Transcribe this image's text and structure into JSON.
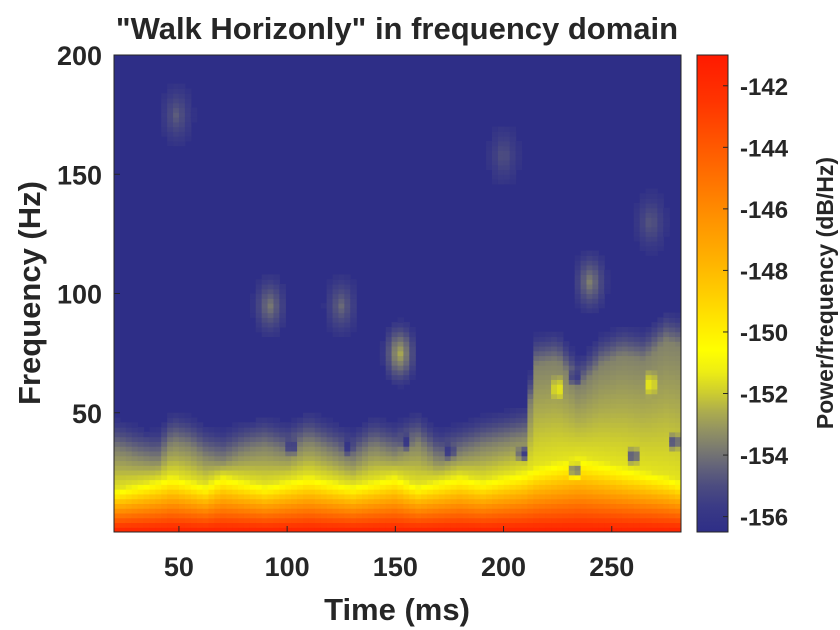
{
  "chart_data": {
    "type": "heatmap",
    "title": "\"Walk Horizonly\" in frequency domain",
    "xlabel": "Time (ms)",
    "ylabel": "Frequency (Hz)",
    "colorbar_label": "Power/frequency (dB/Hz)",
    "xlim": [
      20,
      282
    ],
    "ylim": [
      0,
      200
    ],
    "clim": [
      -156.5,
      -141
    ],
    "x_ticks": [
      50,
      100,
      150,
      200,
      250
    ],
    "x_tick_labels": [
      "50",
      "100",
      "150",
      "200",
      "250"
    ],
    "y_ticks": [
      50,
      100,
      150,
      200
    ],
    "y_tick_labels": [
      "50",
      "100",
      "150",
      "200"
    ],
    "colorbar_ticks": [
      -142,
      -144,
      -146,
      -148,
      -150,
      -152,
      -154,
      -156
    ],
    "colorbar_tick_labels": [
      "-142",
      "-144",
      "-146",
      "-148",
      "-150",
      "-152",
      "-154",
      "-156"
    ],
    "colormap": [
      "#2e2e87",
      "#3a3a86",
      "#4c4c80",
      "#62627a",
      "#7a7a70",
      "#929262",
      "#acac4e",
      "#cccc30",
      "#eded14",
      "#ffff00",
      "#ffe800",
      "#ffcc00",
      "#ffb000",
      "#ff9400",
      "#ff7600",
      "#ff5400",
      "#ff3400",
      "#ff1a00"
    ],
    "color_levels": [
      -156.5,
      -155.7,
      -155.0,
      -154.4,
      -153.8,
      -153.2,
      -152.6,
      -152.0,
      -151.3,
      -150.6,
      -149.7,
      -148.7,
      -147.6,
      -146.4,
      -145.2,
      -143.8,
      -142.5,
      -141.0
    ],
    "grid": false,
    "band_profile": {
      "x": [
        20,
        30,
        40,
        47,
        55,
        62,
        70,
        80,
        90,
        100,
        110,
        120,
        130,
        140,
        150,
        160,
        170,
        180,
        190,
        200,
        210,
        215,
        225,
        235,
        245,
        255,
        265,
        275,
        282
      ],
      "yellow_top_hz": [
        35,
        32,
        30,
        38,
        36,
        32,
        30,
        34,
        36,
        33,
        38,
        34,
        30,
        36,
        33,
        38,
        30,
        33,
        36,
        38,
        40,
        70,
        72,
        60,
        70,
        74,
        72,
        80,
        78
      ],
      "hot_top_hz": [
        18,
        20,
        22,
        24,
        22,
        20,
        24,
        22,
        20,
        22,
        24,
        22,
        20,
        22,
        24,
        20,
        22,
        24,
        22,
        24,
        26,
        28,
        30,
        32,
        30,
        28,
        26,
        24,
        22
      ]
    },
    "faint_regions": [
      {
        "time_ms": 49,
        "freq_hz": 175,
        "level": -154.5
      },
      {
        "time_ms": 200,
        "freq_hz": 158,
        "level": -154.8
      },
      {
        "time_ms": 268,
        "freq_hz": 130,
        "level": -154.6
      },
      {
        "time_ms": 92,
        "freq_hz": 95,
        "level": -153.8
      },
      {
        "time_ms": 125,
        "freq_hz": 95,
        "level": -154.2
      },
      {
        "time_ms": 240,
        "freq_hz": 105,
        "level": -153.6
      },
      {
        "time_ms": 152,
        "freq_hz": 75,
        "level": -152.6
      },
      {
        "time_ms": 225,
        "freq_hz": 60,
        "level": -150.8
      },
      {
        "time_ms": 268,
        "freq_hz": 62,
        "level": -150.8
      }
    ],
    "dark_spots": [
      {
        "time_ms": 35,
        "freq_hz": 44
      },
      {
        "time_ms": 66,
        "freq_hz": 50
      },
      {
        "time_ms": 83,
        "freq_hz": 48
      },
      {
        "time_ms": 102,
        "freq_hz": 36
      },
      {
        "time_ms": 101,
        "freq_hz": 78
      },
      {
        "time_ms": 128,
        "freq_hz": 36
      },
      {
        "time_ms": 155,
        "freq_hz": 38
      },
      {
        "time_ms": 175,
        "freq_hz": 34
      },
      {
        "time_ms": 209,
        "freq_hz": 33
      },
      {
        "time_ms": 233,
        "freq_hz": 65
      },
      {
        "time_ms": 233,
        "freq_hz": 26
      },
      {
        "time_ms": 260,
        "freq_hz": 32
      },
      {
        "time_ms": 258,
        "freq_hz": 90
      },
      {
        "time_ms": 279,
        "freq_hz": 38
      }
    ]
  }
}
